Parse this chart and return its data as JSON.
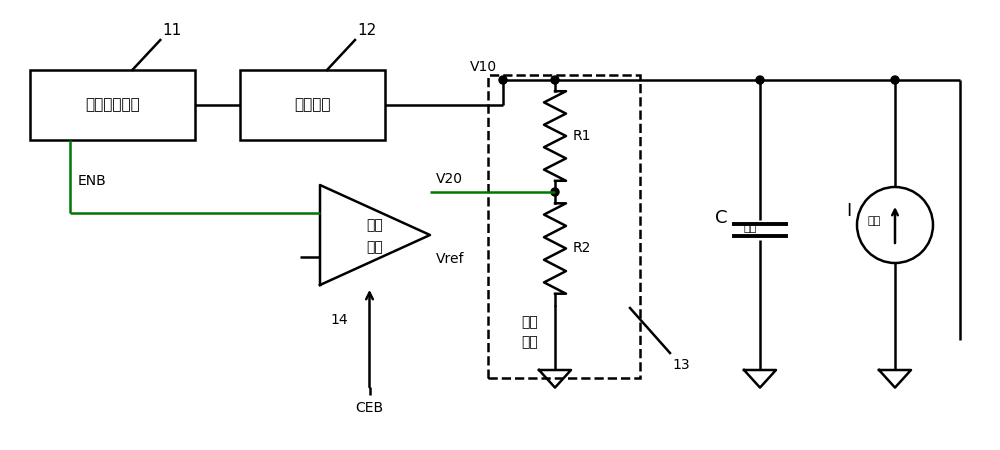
{
  "bg_color": "#ffffff",
  "line_color": "#000000",
  "green_color": "#007700",
  "fig_width": 10.0,
  "fig_height": 4.5,
  "dpi": 100,
  "labels": {
    "11": "11",
    "12": "12",
    "13": "13",
    "14": "14",
    "ENB": "ENB",
    "CEB": "CEB",
    "V10": "V10",
    "V20": "V20",
    "Vref": "Vref",
    "R1": "R1",
    "R2": "R2",
    "clock_unit": "时钟驱动单元",
    "boost_unit": "升压单元",
    "compare_line1": "比较",
    "compare_line2": "单元",
    "divider_line1": "分压",
    "divider_line2": "单元",
    "C_load_main": "C",
    "C_load_sub": "负载",
    "I_load_main": "I",
    "I_load_sub": "负载"
  }
}
